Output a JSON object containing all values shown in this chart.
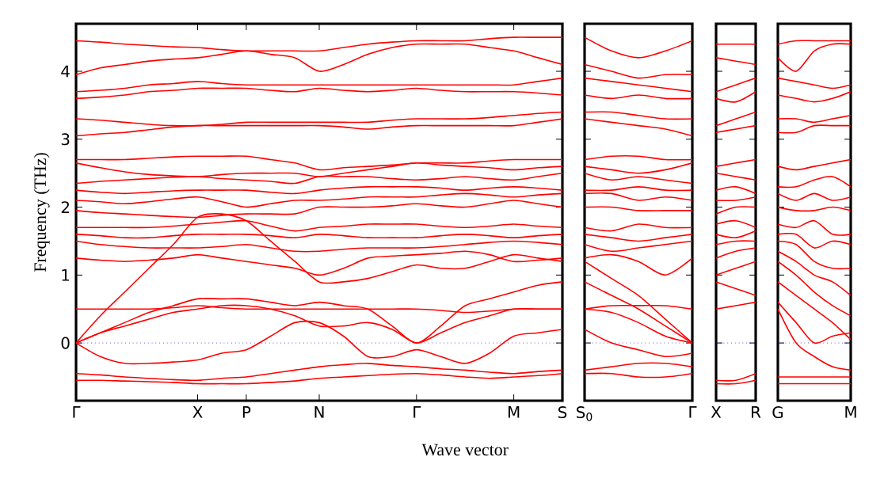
{
  "chart_data": [
    {
      "type": "line",
      "ylabel": "Frequency (THz)",
      "xlabel": "Wave vector",
      "categories": [
        "Γ",
        null,
        null,
        null,
        null,
        "X",
        null,
        "P",
        null,
        null,
        "N",
        null,
        null,
        null,
        "Γ",
        null,
        null,
        null,
        "M",
        null,
        "S"
      ],
      "ylim": [
        -0.85,
        4.7
      ],
      "yticks": [
        0,
        1,
        2,
        3,
        4
      ],
      "grid": false,
      "ref_lines": [
        {
          "axis": "y",
          "value": 0,
          "color": "#0000ff",
          "line_style": "dotted"
        }
      ],
      "series": [
        {
          "color": "#ff0000",
          "values": [
            -0.55,
            -0.55,
            -0.56,
            -0.57,
            -0.58,
            -0.6,
            -0.6,
            -0.6,
            -0.58,
            -0.56,
            -0.52,
            -0.5,
            -0.48,
            -0.46,
            -0.45,
            -0.47,
            -0.5,
            -0.52,
            -0.5,
            -0.48,
            -0.45
          ]
        },
        {
          "color": "#ff0000",
          "values": [
            -0.45,
            -0.47,
            -0.5,
            -0.52,
            -0.54,
            -0.55,
            -0.52,
            -0.5,
            -0.45,
            -0.4,
            -0.35,
            -0.32,
            -0.3,
            -0.33,
            -0.35,
            -0.38,
            -0.4,
            -0.43,
            -0.45,
            -0.42,
            -0.4
          ]
        },
        {
          "color": "#ff0000",
          "values": [
            0,
            -0.2,
            -0.3,
            -0.3,
            -0.28,
            -0.25,
            -0.15,
            -0.1,
            0.1,
            0.3,
            0.3,
            0.1,
            -0.2,
            -0.2,
            -0.1,
            -0.2,
            -0.3,
            -0.15,
            0.1,
            0.15,
            0.2
          ]
        },
        {
          "color": "#ff0000",
          "values": [
            0,
            0.15,
            0.25,
            0.35,
            0.45,
            0.5,
            0.55,
            0.55,
            0.5,
            0.4,
            0.25,
            0.25,
            0.3,
            0.2,
            0,
            0.15,
            0.3,
            0.4,
            0.5,
            0.5,
            0.5
          ]
        },
        {
          "color": "#ff0000",
          "values": [
            0,
            0.15,
            0.3,
            0.45,
            0.55,
            0.65,
            0.65,
            0.65,
            0.6,
            0.55,
            0.6,
            0.55,
            0.5,
            0.25,
            0,
            0.25,
            0.55,
            0.65,
            0.75,
            0.85,
            0.9
          ]
        },
        {
          "color": "#ff0000",
          "values": [
            0.5,
            0.5,
            0.5,
            0.5,
            0.52,
            0.55,
            0.52,
            0.5,
            0.5,
            0.5,
            0.5,
            0.5,
            0.5,
            0.5,
            0.5,
            0.48,
            0.45,
            0.47,
            0.5,
            0.5,
            0.5
          ]
        },
        {
          "color": "#ff0000",
          "values": [
            0,
            0.4,
            0.75,
            1.1,
            1.45,
            1.85,
            1.9,
            1.8,
            1.5,
            1.2,
            0.9,
            0.9,
            0.95,
            1.05,
            1.15,
            1.1,
            1.1,
            1.2,
            1.3,
            1.25,
            1.2
          ]
        },
        {
          "color": "#ff0000",
          "values": [
            1.25,
            1.22,
            1.2,
            1.22,
            1.25,
            1.3,
            1.25,
            1.2,
            1.15,
            1.1,
            1.0,
            1.1,
            1.25,
            1.28,
            1.3,
            1.32,
            1.35,
            1.3,
            1.2,
            1.22,
            1.25
          ]
        },
        {
          "color": "#ff0000",
          "values": [
            1.5,
            1.45,
            1.42,
            1.4,
            1.4,
            1.4,
            1.42,
            1.45,
            1.4,
            1.35,
            1.35,
            1.38,
            1.4,
            1.4,
            1.4,
            1.42,
            1.45,
            1.48,
            1.5,
            1.48,
            1.45
          ]
        },
        {
          "color": "#ff0000",
          "values": [
            1.6,
            1.58,
            1.55,
            1.55,
            1.58,
            1.6,
            1.6,
            1.6,
            1.58,
            1.55,
            1.6,
            1.58,
            1.55,
            1.55,
            1.55,
            1.58,
            1.6,
            1.58,
            1.55,
            1.58,
            1.6
          ]
        },
        {
          "color": "#ff0000",
          "values": [
            1.7,
            1.7,
            1.7,
            1.7,
            1.72,
            1.75,
            1.78,
            1.8,
            1.72,
            1.65,
            1.7,
            1.72,
            1.75,
            1.75,
            1.75,
            1.72,
            1.7,
            1.72,
            1.75,
            1.72,
            1.7
          ]
        },
        {
          "color": "#ff0000",
          "values": [
            1.95,
            1.92,
            1.9,
            1.88,
            1.86,
            1.85,
            1.88,
            1.9,
            1.9,
            1.9,
            2.0,
            2.0,
            2.0,
            2.02,
            2.05,
            2.02,
            2.0,
            2.05,
            2.1,
            2.05,
            2.0
          ]
        },
        {
          "color": "#ff0000",
          "values": [
            2.1,
            2.08,
            2.05,
            2.08,
            2.12,
            2.15,
            2.08,
            2.0,
            2.05,
            2.1,
            2.1,
            2.12,
            2.15,
            2.15,
            2.15,
            2.18,
            2.2,
            2.18,
            2.15,
            2.18,
            2.2
          ]
        },
        {
          "color": "#ff0000",
          "values": [
            2.25,
            2.22,
            2.2,
            2.22,
            2.24,
            2.25,
            2.25,
            2.25,
            2.22,
            2.2,
            2.25,
            2.28,
            2.3,
            2.3,
            2.3,
            2.28,
            2.25,
            2.28,
            2.3,
            2.28,
            2.25
          ]
        },
        {
          "color": "#ff0000",
          "values": [
            2.35,
            2.38,
            2.4,
            2.42,
            2.44,
            2.45,
            2.42,
            2.4,
            2.38,
            2.35,
            2.45,
            2.45,
            2.45,
            2.42,
            2.4,
            2.42,
            2.45,
            2.42,
            2.4,
            2.45,
            2.5
          ]
        },
        {
          "color": "#ff0000",
          "values": [
            2.65,
            2.58,
            2.52,
            2.48,
            2.46,
            2.45,
            2.48,
            2.5,
            2.5,
            2.5,
            2.45,
            2.5,
            2.55,
            2.6,
            2.65,
            2.62,
            2.6,
            2.58,
            2.55,
            2.58,
            2.6
          ]
        },
        {
          "color": "#ff0000",
          "values": [
            2.7,
            2.7,
            2.7,
            2.72,
            2.74,
            2.75,
            2.75,
            2.75,
            2.7,
            2.65,
            2.55,
            2.58,
            2.6,
            2.62,
            2.65,
            2.65,
            2.65,
            2.68,
            2.7,
            2.7,
            2.7
          ]
        },
        {
          "color": "#ff0000",
          "values": [
            3.05,
            3.08,
            3.1,
            3.14,
            3.18,
            3.2,
            3.2,
            3.2,
            3.2,
            3.2,
            3.2,
            3.18,
            3.15,
            3.18,
            3.2,
            3.2,
            3.2,
            3.2,
            3.2,
            3.25,
            3.3
          ]
        },
        {
          "color": "#ff0000",
          "values": [
            3.3,
            3.28,
            3.25,
            3.22,
            3.2,
            3.2,
            3.22,
            3.25,
            3.25,
            3.25,
            3.25,
            3.25,
            3.25,
            3.28,
            3.3,
            3.3,
            3.3,
            3.32,
            3.35,
            3.38,
            3.4
          ]
        },
        {
          "color": "#ff0000",
          "values": [
            3.6,
            3.62,
            3.65,
            3.7,
            3.72,
            3.75,
            3.75,
            3.75,
            3.72,
            3.7,
            3.75,
            3.72,
            3.7,
            3.72,
            3.75,
            3.72,
            3.7,
            3.7,
            3.7,
            3.68,
            3.65
          ]
        },
        {
          "color": "#ff0000",
          "values": [
            3.7,
            3.72,
            3.75,
            3.8,
            3.82,
            3.85,
            3.82,
            3.8,
            3.8,
            3.8,
            3.8,
            3.8,
            3.8,
            3.8,
            3.8,
            3.8,
            3.8,
            3.8,
            3.8,
            3.85,
            3.9
          ]
        },
        {
          "color": "#ff0000",
          "values": [
            3.95,
            4.05,
            4.1,
            4.15,
            4.18,
            4.2,
            4.25,
            4.3,
            4.25,
            4.2,
            4.0,
            4.1,
            4.25,
            4.35,
            4.4,
            4.4,
            4.4,
            4.35,
            4.3,
            4.2,
            4.1
          ]
        },
        {
          "color": "#ff0000",
          "values": [
            4.45,
            4.43,
            4.4,
            4.38,
            4.36,
            4.35,
            4.32,
            4.3,
            4.3,
            4.3,
            4.3,
            4.35,
            4.4,
            4.43,
            4.45,
            4.45,
            4.45,
            4.48,
            4.5,
            4.5,
            4.5
          ]
        }
      ]
    },
    {
      "type": "line",
      "categories": [
        "S$_{0}$",
        null,
        null,
        null,
        "Γ"
      ],
      "ylim": [
        -0.85,
        4.7
      ],
      "yticks": [
        0,
        1,
        2,
        3,
        4
      ],
      "tick_labels": "x",
      "grid": false,
      "ref_lines": [
        {
          "axis": "y",
          "value": 0,
          "color": "#0000ff",
          "line_style": "dotted"
        }
      ],
      "series": [
        {
          "color": "#ff0000",
          "values": [
            -0.45,
            -0.45,
            -0.5,
            -0.5,
            -0.45
          ]
        },
        {
          "color": "#ff0000",
          "values": [
            -0.4,
            -0.35,
            -0.3,
            -0.3,
            -0.35
          ]
        },
        {
          "color": "#ff0000",
          "values": [
            0.2,
            0,
            -0.1,
            -0.2,
            -0.15
          ]
        },
        {
          "color": "#ff0000",
          "values": [
            0.5,
            0.45,
            0.3,
            0.1,
            0
          ]
        },
        {
          "color": "#ff0000",
          "values": [
            0.9,
            0.7,
            0.5,
            0.25,
            0
          ]
        },
        {
          "color": "#ff0000",
          "values": [
            0.5,
            0.55,
            0.55,
            0.55,
            0.5
          ]
        },
        {
          "color": "#ff0000",
          "values": [
            1.2,
            0.95,
            0.7,
            0.35,
            0
          ]
        },
        {
          "color": "#ff0000",
          "values": [
            1.25,
            1.3,
            1.2,
            1.0,
            1.25
          ]
        },
        {
          "color": "#ff0000",
          "values": [
            1.45,
            1.35,
            1.4,
            1.45,
            1.5
          ]
        },
        {
          "color": "#ff0000",
          "values": [
            1.6,
            1.55,
            1.5,
            1.55,
            1.6
          ]
        },
        {
          "color": "#ff0000",
          "values": [
            1.7,
            1.65,
            1.75,
            1.7,
            1.7
          ]
        },
        {
          "color": "#ff0000",
          "values": [
            2.0,
            2.0,
            1.95,
            1.95,
            1.95
          ]
        },
        {
          "color": "#ff0000",
          "values": [
            2.2,
            2.2,
            2.1,
            2.15,
            2.1
          ]
        },
        {
          "color": "#ff0000",
          "values": [
            2.25,
            2.25,
            2.3,
            2.25,
            2.25
          ]
        },
        {
          "color": "#ff0000",
          "values": [
            2.5,
            2.4,
            2.45,
            2.4,
            2.35
          ]
        },
        {
          "color": "#ff0000",
          "values": [
            2.6,
            2.55,
            2.5,
            2.55,
            2.65
          ]
        },
        {
          "color": "#ff0000",
          "values": [
            2.7,
            2.75,
            2.75,
            2.7,
            2.7
          ]
        },
        {
          "color": "#ff0000",
          "values": [
            3.3,
            3.25,
            3.2,
            3.15,
            3.05
          ]
        },
        {
          "color": "#ff0000",
          "values": [
            3.4,
            3.4,
            3.35,
            3.3,
            3.3
          ]
        },
        {
          "color": "#ff0000",
          "values": [
            3.65,
            3.6,
            3.65,
            3.6,
            3.6
          ]
        },
        {
          "color": "#ff0000",
          "values": [
            3.9,
            3.85,
            3.8,
            3.75,
            3.7
          ]
        },
        {
          "color": "#ff0000",
          "values": [
            4.1,
            4.0,
            3.9,
            3.95,
            3.95
          ]
        },
        {
          "color": "#ff0000",
          "values": [
            4.5,
            4.3,
            4.2,
            4.3,
            4.45
          ]
        }
      ]
    },
    {
      "type": "line",
      "categories": [
        "X",
        null,
        "R"
      ],
      "ylim": [
        -0.85,
        4.7
      ],
      "yticks": [
        0,
        1,
        2,
        3,
        4
      ],
      "tick_labels": "x",
      "grid": false,
      "ref_lines": [
        {
          "axis": "y",
          "value": 0,
          "color": "#0000ff",
          "line_style": "dotted"
        }
      ],
      "series": [
        {
          "color": "#ff0000",
          "values": [
            -0.6,
            -0.6,
            -0.55
          ]
        },
        {
          "color": "#ff0000",
          "values": [
            -0.55,
            -0.55,
            -0.45
          ]
        },
        {
          "color": "#ff0000",
          "values": [
            0.5,
            0.55,
            0.6
          ]
        },
        {
          "color": "#ff0000",
          "values": [
            0.9,
            0.8,
            0.7
          ]
        },
        {
          "color": "#ff0000",
          "values": [
            1.0,
            1.1,
            1.2
          ]
        },
        {
          "color": "#ff0000",
          "values": [
            1.25,
            1.35,
            1.4
          ]
        },
        {
          "color": "#ff0000",
          "values": [
            1.45,
            1.5,
            1.5
          ]
        },
        {
          "color": "#ff0000",
          "values": [
            1.6,
            1.55,
            1.65
          ]
        },
        {
          "color": "#ff0000",
          "values": [
            1.75,
            1.8,
            1.7
          ]
        },
        {
          "color": "#ff0000",
          "values": [
            1.9,
            2.0,
            2.0
          ]
        },
        {
          "color": "#ff0000",
          "values": [
            2.1,
            2.1,
            2.15
          ]
        },
        {
          "color": "#ff0000",
          "values": [
            2.25,
            2.3,
            2.2
          ]
        },
        {
          "color": "#ff0000",
          "values": [
            2.5,
            2.45,
            2.4
          ]
        },
        {
          "color": "#ff0000",
          "values": [
            2.6,
            2.65,
            2.7
          ]
        },
        {
          "color": "#ff0000",
          "values": [
            3.1,
            3.15,
            3.2
          ]
        },
        {
          "color": "#ff0000",
          "values": [
            3.2,
            3.3,
            3.4
          ]
        },
        {
          "color": "#ff0000",
          "values": [
            3.6,
            3.55,
            3.7
          ]
        },
        {
          "color": "#ff0000",
          "values": [
            3.7,
            3.8,
            3.9
          ]
        },
        {
          "color": "#ff0000",
          "values": [
            4.2,
            4.15,
            4.1
          ]
        },
        {
          "color": "#ff0000",
          "values": [
            4.4,
            4.4,
            4.4
          ]
        }
      ]
    },
    {
      "type": "line",
      "categories": [
        "G",
        null,
        null,
        null,
        "M"
      ],
      "ylim": [
        -0.85,
        4.7
      ],
      "yticks": [
        0,
        1,
        2,
        3,
        4
      ],
      "tick_labels": "x",
      "grid": false,
      "ref_lines": [
        {
          "axis": "y",
          "value": 0,
          "color": "#0000ff",
          "line_style": "dotted"
        }
      ],
      "series": [
        {
          "color": "#ff0000",
          "values": [
            -0.5,
            -0.5,
            -0.5,
            -0.5,
            -0.5
          ]
        },
        {
          "color": "#ff0000",
          "values": [
            -0.6,
            -0.6,
            -0.6,
            -0.6,
            -0.6
          ]
        },
        {
          "color": "#ff0000",
          "values": [
            0.5,
            0,
            -0.2,
            -0.35,
            -0.4
          ]
        },
        {
          "color": "#ff0000",
          "values": [
            0.6,
            0.3,
            0,
            0.1,
            0.15
          ]
        },
        {
          "color": "#ff0000",
          "values": [
            0.9,
            0.7,
            0.5,
            0.3,
            0.05
          ]
        },
        {
          "color": "#ff0000",
          "values": [
            1.2,
            1.0,
            0.75,
            0.55,
            0.4
          ]
        },
        {
          "color": "#ff0000",
          "values": [
            1.35,
            1.2,
            1.0,
            0.9,
            0.7
          ]
        },
        {
          "color": "#ff0000",
          "values": [
            1.5,
            1.45,
            1.2,
            1.1,
            1.1
          ]
        },
        {
          "color": "#ff0000",
          "values": [
            1.6,
            1.6,
            1.4,
            1.5,
            1.45
          ]
        },
        {
          "color": "#ff0000",
          "values": [
            1.75,
            1.7,
            1.8,
            1.6,
            1.6
          ]
        },
        {
          "color": "#ff0000",
          "values": [
            2.0,
            1.95,
            1.95,
            2.0,
            1.95
          ]
        },
        {
          "color": "#ff0000",
          "values": [
            2.2,
            2.1,
            2.2,
            2.1,
            2.15
          ]
        },
        {
          "color": "#ff0000",
          "values": [
            2.3,
            2.3,
            2.4,
            2.45,
            2.3
          ]
        },
        {
          "color": "#ff0000",
          "values": [
            2.6,
            2.55,
            2.6,
            2.65,
            2.7
          ]
        },
        {
          "color": "#ff0000",
          "values": [
            3.1,
            3.1,
            3.2,
            3.2,
            3.2
          ]
        },
        {
          "color": "#ff0000",
          "values": [
            3.3,
            3.3,
            3.25,
            3.3,
            3.35
          ]
        },
        {
          "color": "#ff0000",
          "values": [
            3.65,
            3.6,
            3.55,
            3.6,
            3.7
          ]
        },
        {
          "color": "#ff0000",
          "values": [
            3.9,
            3.85,
            3.8,
            3.75,
            3.8
          ]
        },
        {
          "color": "#ff0000",
          "values": [
            4.2,
            4.0,
            4.3,
            4.4,
            4.4
          ]
        },
        {
          "color": "#ff0000",
          "values": [
            4.4,
            4.45,
            4.45,
            4.45,
            4.45
          ]
        }
      ]
    }
  ]
}
